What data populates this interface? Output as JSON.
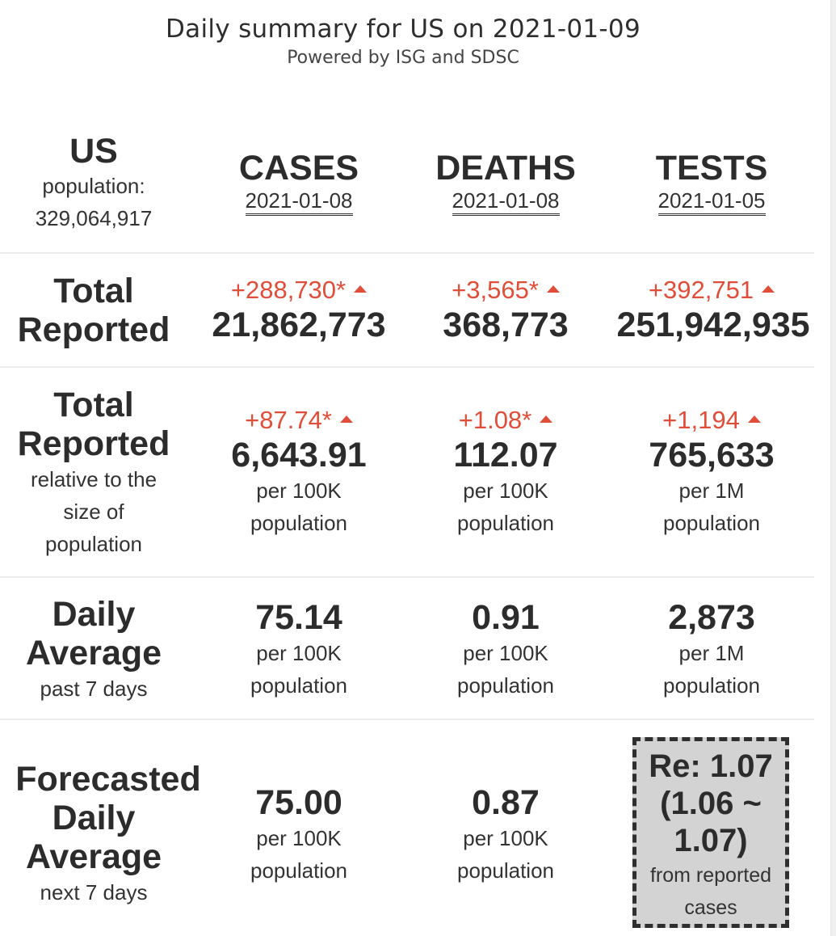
{
  "header": {
    "title": "Daily summary for US on 2021-01-09",
    "subtitle": "Powered by ISG and SDSC"
  },
  "region": {
    "name": "US",
    "population_label": "population:",
    "population_value": "329,064,917"
  },
  "columns": {
    "cases": {
      "label": "CASES",
      "date": "2021-01-08"
    },
    "deaths": {
      "label": "DEATHS",
      "date": "2021-01-08"
    },
    "tests": {
      "label": "TESTS",
      "date": "2021-01-05"
    }
  },
  "rows": {
    "total": {
      "head_line1": "Total",
      "head_line2": "Reported",
      "cases": {
        "delta": "+288,730*",
        "value": "21,862,773"
      },
      "deaths": {
        "delta": "+3,565*",
        "value": "368,773"
      },
      "tests": {
        "delta": "+392,751",
        "value": "251,942,935"
      }
    },
    "relative": {
      "head_line1": "Total",
      "head_line2": "Reported",
      "sub1": "relative to the",
      "sub2": "size of",
      "sub3": "population",
      "cases": {
        "delta": "+87.74*",
        "value": "6,643.91",
        "unit1": "per 100K",
        "unit2": "population"
      },
      "deaths": {
        "delta": "+1.08*",
        "value": "112.07",
        "unit1": "per 100K",
        "unit2": "population"
      },
      "tests": {
        "delta": "+1,194",
        "value": "765,633",
        "unit1": "per 1M",
        "unit2": "population"
      }
    },
    "daily": {
      "head_line1": "Daily",
      "head_line2": "Average",
      "sub1": "past 7 days",
      "cases": {
        "value": "75.14",
        "unit1": "per 100K",
        "unit2": "population"
      },
      "deaths": {
        "value": "0.91",
        "unit1": "per 100K",
        "unit2": "population"
      },
      "tests": {
        "value": "2,873",
        "unit1": "per 1M",
        "unit2": "population"
      }
    },
    "forecast": {
      "head_line1": "Forecasted",
      "head_line2": "Daily",
      "head_line3": "Average",
      "sub1": "next 7 days",
      "cases": {
        "value": "75.00",
        "unit1": "per 100K",
        "unit2": "population"
      },
      "deaths": {
        "value": "0.87",
        "unit1": "per 100K",
        "unit2": "population"
      },
      "re": {
        "line1": "Re: 1.07",
        "line2": "(1.06 ~",
        "line3": "1.07)",
        "note1": "from reported",
        "note2": "cases"
      }
    }
  },
  "colors": {
    "increase": "#e04e3a",
    "text": "#333333",
    "re_box_bg": "#d3d3d3"
  }
}
